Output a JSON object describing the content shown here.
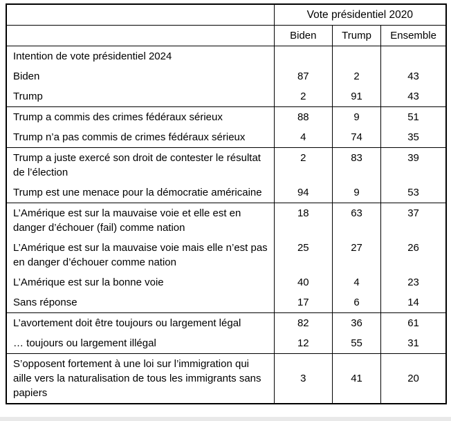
{
  "table": {
    "header": {
      "group_title": "Vote présidentiel 2020",
      "columns": [
        "Biden",
        "Trump",
        "Ensemble"
      ]
    },
    "groups": [
      {
        "rows": [
          {
            "label": "Intention de vote présidentiel 2024",
            "values": [
              "",
              "",
              ""
            ]
          },
          {
            "label": "Biden",
            "values": [
              "87",
              "2",
              "43"
            ]
          },
          {
            "label": "Trump",
            "values": [
              "2",
              "91",
              "43"
            ]
          }
        ]
      },
      {
        "rows": [
          {
            "label": "Trump a commis des crimes fédéraux sérieux",
            "values": [
              "88",
              "9",
              "51"
            ]
          },
          {
            "label": "Trump n’a pas commis de crimes fédéraux sérieux",
            "values": [
              "4",
              "74",
              "35"
            ]
          }
        ]
      },
      {
        "rows": [
          {
            "label": "Trump a juste exercé son droit de contester le résultat de l’élection",
            "values": [
              "2",
              "83",
              "39"
            ]
          },
          {
            "label": "Trump est une menace pour la démocratie américaine",
            "values": [
              "94",
              "9",
              "53"
            ]
          }
        ]
      },
      {
        "rows": [
          {
            "label": "L’Amérique est sur la mauvaise voie et elle est en danger d’échouer (fail) comme nation",
            "values": [
              "18",
              "63",
              "37"
            ]
          },
          {
            "label": "L’Amérique est sur la mauvaise voie mais elle n’est pas en danger d’échouer comme nation",
            "values": [
              "25",
              "27",
              "26"
            ]
          },
          {
            "label": "L’Amérique est sur la bonne voie",
            "values": [
              "40",
              "4",
              "23"
            ]
          },
          {
            "label": "Sans réponse",
            "values": [
              "17",
              "6",
              "14"
            ]
          }
        ]
      },
      {
        "rows": [
          {
            "label": "L’avortement doit être toujours ou largement légal",
            "values": [
              "82",
              "36",
              "61"
            ]
          },
          {
            "label": "… toujours ou largement illégal",
            "values": [
              "12",
              "55",
              "31"
            ]
          }
        ]
      },
      {
        "rows": [
          {
            "label": "S’opposent fortement à une loi sur l’immigration qui aille vers la naturalisation de tous les immigrants sans papiers",
            "values": [
              "3",
              "41",
              "20"
            ],
            "valign": "middle"
          }
        ]
      }
    ]
  }
}
